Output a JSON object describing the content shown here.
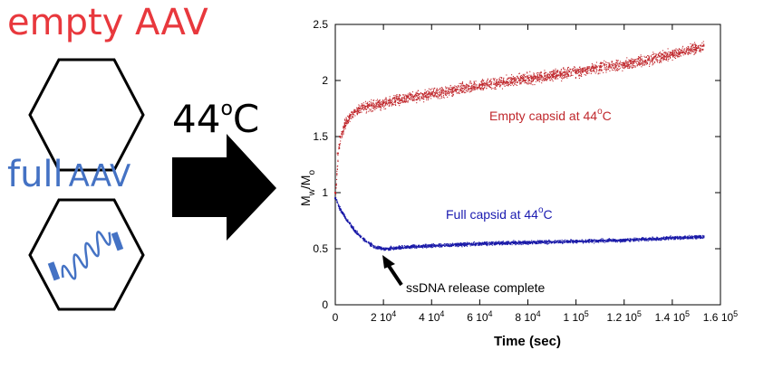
{
  "labels": {
    "empty_aav": "empty AAV",
    "full_aav_word1": "full",
    "full_aav_word2": "AAV",
    "temperature_value": "44",
    "temperature_unit_sup": "o",
    "temperature_unit": "C"
  },
  "colors": {
    "empty": "#e8383d",
    "full": "#4472c4",
    "empty_series": "#c0282d",
    "full_series": "#1a1aa8",
    "arrow": "#000000"
  },
  "chart_data": {
    "type": "scatter",
    "xlabel": "Time (sec)",
    "ylabel": "Mw/Mo",
    "ylabel_parts": {
      "main1": "M",
      "sub1": "w",
      "sep": "/M",
      "sub2": "o"
    },
    "xlim": [
      0,
      160000
    ],
    "ylim": [
      0,
      2.5
    ],
    "x_ticks": [
      {
        "v": 0,
        "base": "0",
        "exp": ""
      },
      {
        "v": 20000,
        "base": "2 10",
        "exp": "4"
      },
      {
        "v": 40000,
        "base": "4 10",
        "exp": "4"
      },
      {
        "v": 60000,
        "base": "6 10",
        "exp": "4"
      },
      {
        "v": 80000,
        "base": "8 10",
        "exp": "4"
      },
      {
        "v": 100000,
        "base": "1 10",
        "exp": "5"
      },
      {
        "v": 120000,
        "base": "1.2 10",
        "exp": "5"
      },
      {
        "v": 140000,
        "base": "1.4 10",
        "exp": "5"
      },
      {
        "v": 160000,
        "base": "1.6 10",
        "exp": "5"
      }
    ],
    "y_ticks": [
      {
        "v": 0,
        "label": "0"
      },
      {
        "v": 0.5,
        "label": "0.5"
      },
      {
        "v": 1,
        "label": "1"
      },
      {
        "v": 1.5,
        "label": "1.5"
      },
      {
        "v": 2,
        "label": "2"
      },
      {
        "v": 2.5,
        "label": "2.5"
      }
    ],
    "series": [
      {
        "key": "empty",
        "x": [
          0,
          1000,
          2000,
          4000,
          6000,
          8000,
          10000,
          15000,
          20000,
          30000,
          40000,
          50000,
          60000,
          70000,
          80000,
          90000,
          100000,
          110000,
          120000,
          130000,
          140000,
          150000,
          153000
        ],
        "y": [
          1.0,
          1.35,
          1.5,
          1.62,
          1.68,
          1.72,
          1.75,
          1.78,
          1.8,
          1.85,
          1.88,
          1.92,
          1.96,
          1.99,
          2.02,
          2.05,
          2.08,
          2.12,
          2.15,
          2.19,
          2.24,
          2.29,
          2.31
        ]
      },
      {
        "key": "full",
        "x": [
          0,
          2000,
          5000,
          8000,
          12000,
          16000,
          20000,
          25000,
          30000,
          40000,
          50000,
          60000,
          80000,
          100000,
          120000,
          140000,
          153000
        ],
        "y": [
          0.95,
          0.85,
          0.75,
          0.66,
          0.58,
          0.52,
          0.5,
          0.51,
          0.52,
          0.53,
          0.54,
          0.55,
          0.56,
          0.57,
          0.58,
          0.6,
          0.61
        ]
      }
    ],
    "annotations": {
      "empty_label": {
        "text": "Empty capsid at 44",
        "sup": "o",
        "unit": "C"
      },
      "full_label": {
        "text": "Full capsid at 44",
        "sup": "o",
        "unit": "C"
      },
      "release_label": {
        "text": "ssDNA release complete"
      }
    }
  }
}
